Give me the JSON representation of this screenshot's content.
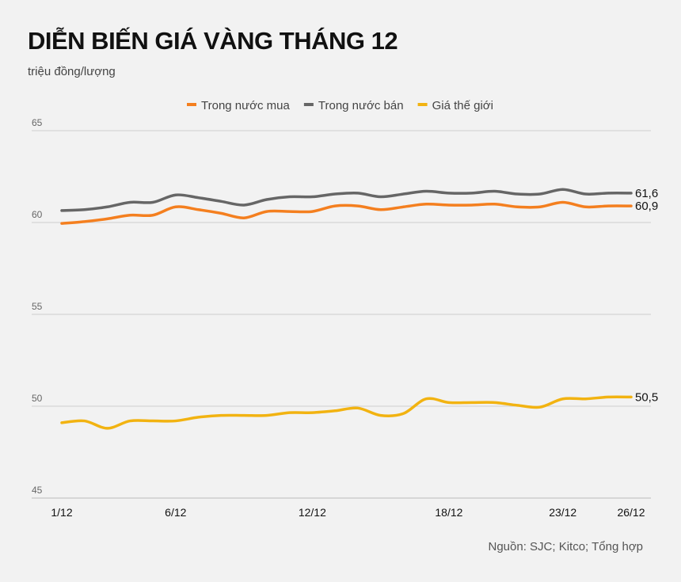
{
  "chart_data": {
    "type": "line",
    "title": "DIỄN BIẾN GIÁ VÀNG THÁNG 12",
    "subtitle": "triệu đồng/lượng",
    "source": "Nguồn: SJC; Kitco; Tổng hợp",
    "x": [
      1,
      2,
      3,
      4,
      5,
      6,
      7,
      8,
      9,
      10,
      11,
      12,
      13,
      14,
      15,
      16,
      17,
      18,
      19,
      20,
      21,
      22,
      23,
      24,
      25,
      26
    ],
    "x_tick_labels": [
      {
        "x": 1,
        "label": "1/12"
      },
      {
        "x": 6,
        "label": "6/12"
      },
      {
        "x": 12,
        "label": "12/12"
      },
      {
        "x": 18,
        "label": "18/12"
      },
      {
        "x": 23,
        "label": "23/12"
      },
      {
        "x": 26,
        "label": "26/12"
      }
    ],
    "ylim": [
      45,
      65
    ],
    "y_ticks": [
      45,
      50,
      55,
      60,
      65
    ],
    "grid": true,
    "legend_position": "top",
    "series": [
      {
        "name": "Trong nước mua",
        "color": "#f47f1f",
        "end_label": "60,9",
        "values": [
          59.95,
          60.05,
          60.2,
          60.4,
          60.4,
          60.85,
          60.7,
          60.5,
          60.25,
          60.6,
          60.6,
          60.6,
          60.9,
          60.9,
          60.7,
          60.85,
          61.0,
          60.95,
          60.95,
          61.0,
          60.85,
          60.85,
          61.1,
          60.85,
          60.9,
          60.9
        ]
      },
      {
        "name": "Trong nước bán",
        "color": "#666666",
        "end_label": "61,6",
        "values": [
          60.65,
          60.7,
          60.85,
          61.1,
          61.1,
          61.5,
          61.35,
          61.15,
          60.95,
          61.25,
          61.4,
          61.4,
          61.55,
          61.6,
          61.4,
          61.55,
          61.7,
          61.6,
          61.6,
          61.7,
          61.55,
          61.55,
          61.8,
          61.55,
          61.6,
          61.6
        ]
      },
      {
        "name": "Giá thế giới",
        "color": "#f2b311",
        "end_label": "50,5",
        "values": [
          49.1,
          49.2,
          48.8,
          49.2,
          49.2,
          49.2,
          49.4,
          49.5,
          49.5,
          49.5,
          49.65,
          49.65,
          49.75,
          49.9,
          49.5,
          49.6,
          50.4,
          50.2,
          50.2,
          50.2,
          50.05,
          49.95,
          50.4,
          50.4,
          50.5,
          50.5
        ]
      }
    ]
  }
}
